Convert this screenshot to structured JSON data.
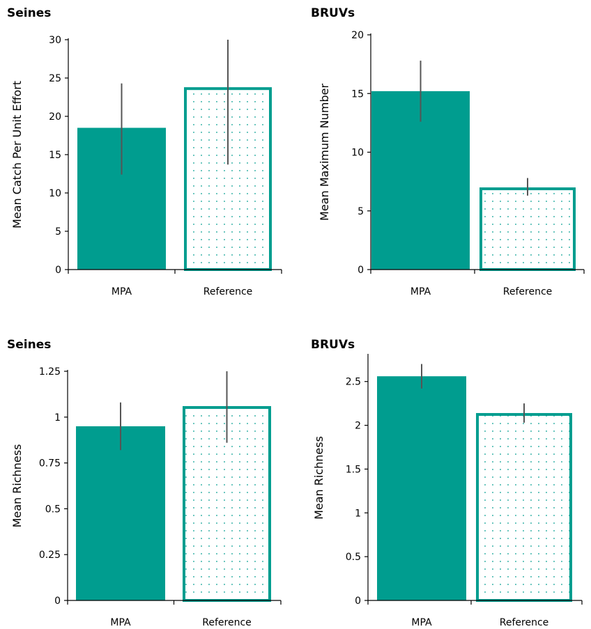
{
  "charts": [
    {
      "type": "bar",
      "title": "Seines",
      "ylabel": "Mean Catch Per Unit Effort",
      "categories": [
        "MPA",
        "Reference"
      ],
      "values": [
        18.5,
        23.8
      ],
      "error_low": [
        12.4,
        13.7
      ],
      "error_high": [
        24.3,
        30.0
      ],
      "ylim": [
        0,
        30
      ],
      "yticks": [
        0,
        5,
        10,
        15,
        20,
        25,
        30
      ],
      "ytick_labels": [
        "0",
        "5",
        "10",
        "15",
        "20",
        "25",
        "30"
      ]
    },
    {
      "type": "bar",
      "title": "BRUVs",
      "ylabel": "Mean Maximum Number",
      "categories": [
        "MPA",
        "Reference"
      ],
      "values": [
        15.2,
        7.0
      ],
      "error_low": [
        12.6,
        6.3
      ],
      "error_high": [
        17.8,
        7.8
      ],
      "ylim": [
        0,
        20
      ],
      "yticks": [
        0,
        5,
        10,
        15,
        20
      ],
      "ytick_labels": [
        "0",
        "5",
        "10",
        "15",
        "20"
      ]
    },
    {
      "type": "bar",
      "title": "Seines",
      "ylabel": "Mean Richness",
      "categories": [
        "MPA",
        "Reference"
      ],
      "values": [
        0.95,
        1.06
      ],
      "error_low": [
        0.82,
        0.86
      ],
      "error_high": [
        1.08,
        1.25
      ],
      "ylim": [
        0,
        1.25
      ],
      "yticks": [
        0,
        0.25,
        0.5,
        0.75,
        1,
        1.25
      ],
      "ytick_labels": [
        "0",
        "0.25",
        "0.5",
        "0.75",
        "1",
        "1.25"
      ]
    },
    {
      "type": "bar",
      "title": "BRUVs",
      "ylabel": "Mean Richness",
      "categories": [
        "MPA",
        "Reference"
      ],
      "values": [
        2.56,
        2.14
      ],
      "error_low": [
        2.42,
        2.03
      ],
      "error_high": [
        2.7,
        2.25
      ],
      "ylim": [
        0,
        2.8
      ],
      "yticks": [
        0,
        0.5,
        1,
        1.5,
        2,
        2.5
      ],
      "ytick_labels": [
        "0",
        "0.5",
        "1",
        "1.5",
        "2",
        "2.5"
      ]
    }
  ],
  "colors": {
    "mpa_fill": "#009d8f",
    "reference_border": "#009d8f",
    "reference_fill": "#ffffff",
    "reference_dots": "#009d8f",
    "error_bar": "#555555"
  }
}
